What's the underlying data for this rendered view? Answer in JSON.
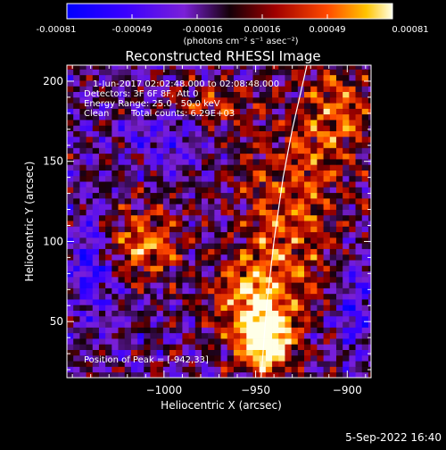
{
  "colorbar": {
    "ticks": [
      "-0.00081",
      "-0.00049",
      "-0.00016",
      "0.00016",
      "0.00049",
      "0.00081"
    ],
    "unit_label": "(photons cm⁻² s⁻¹ asec⁻²)"
  },
  "chart_data": {
    "type": "heatmap",
    "title": "Reconstructed RHESSI Image",
    "xlabel": "Heliocentric X (arcsec)",
    "ylabel": "Heliocentric Y (arcsec)",
    "xlim": [
      -1053,
      -887
    ],
    "ylim": [
      15,
      210
    ],
    "x_ticks": [
      -1000,
      -950,
      -900
    ],
    "x_tick_labels": [
      "−1000",
      "−950",
      "−900"
    ],
    "y_ticks": [
      50,
      100,
      150,
      200
    ],
    "y_tick_labels": [
      "50",
      "100",
      "150",
      "200"
    ],
    "value_range": [
      -0.00081,
      0.00081
    ],
    "peak": [
      -942,
      33
    ],
    "limb_curve": [
      [
        -947,
        15
      ],
      [
        -944,
        60
      ],
      [
        -940,
        100
      ],
      [
        -935,
        140
      ],
      [
        -930,
        170
      ],
      [
        -922,
        210
      ]
    ],
    "annotations": [
      "1-Jun-2017 02:02:48.000 to 02:08:48.000",
      "Detectors: 3F 6F 8F, Att 0",
      "Energy Range: 25.0 - 50.0 keV",
      "Clean",
      "Total counts: 6.29E+03",
      "Position of Peak = [-942,33]"
    ],
    "grid": false
  },
  "footer": {
    "date": "5-Sep-2022 16:40"
  },
  "colors": {
    "background": "#000000",
    "text": "#ffffff"
  }
}
